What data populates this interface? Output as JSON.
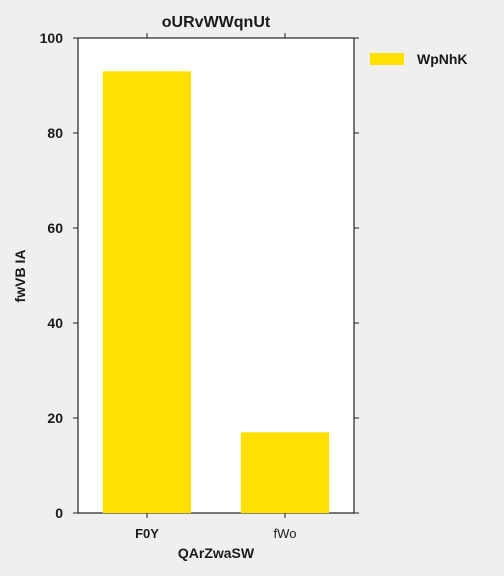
{
  "chart_data": {
    "type": "bar",
    "title": "oURvWWqnUt",
    "xlabel": "QArZwaSW",
    "ylabel": "fwVB IA",
    "categories": [
      "F0Y",
      "fWo"
    ],
    "category_label_weights": [
      "bold",
      "normal"
    ],
    "series": [
      {
        "name": "WpNhK",
        "color": "#ffe000",
        "values": [
          93,
          17
        ]
      }
    ],
    "ylim": [
      0,
      100
    ],
    "yticks": [
      0,
      20,
      40,
      60,
      80,
      100
    ],
    "grid": false,
    "legend": "top-right-outside"
  },
  "colors": {
    "background": "#efefef",
    "plot_background": "#ffffff",
    "bar": "#ffe000",
    "axis": "#222222"
  }
}
